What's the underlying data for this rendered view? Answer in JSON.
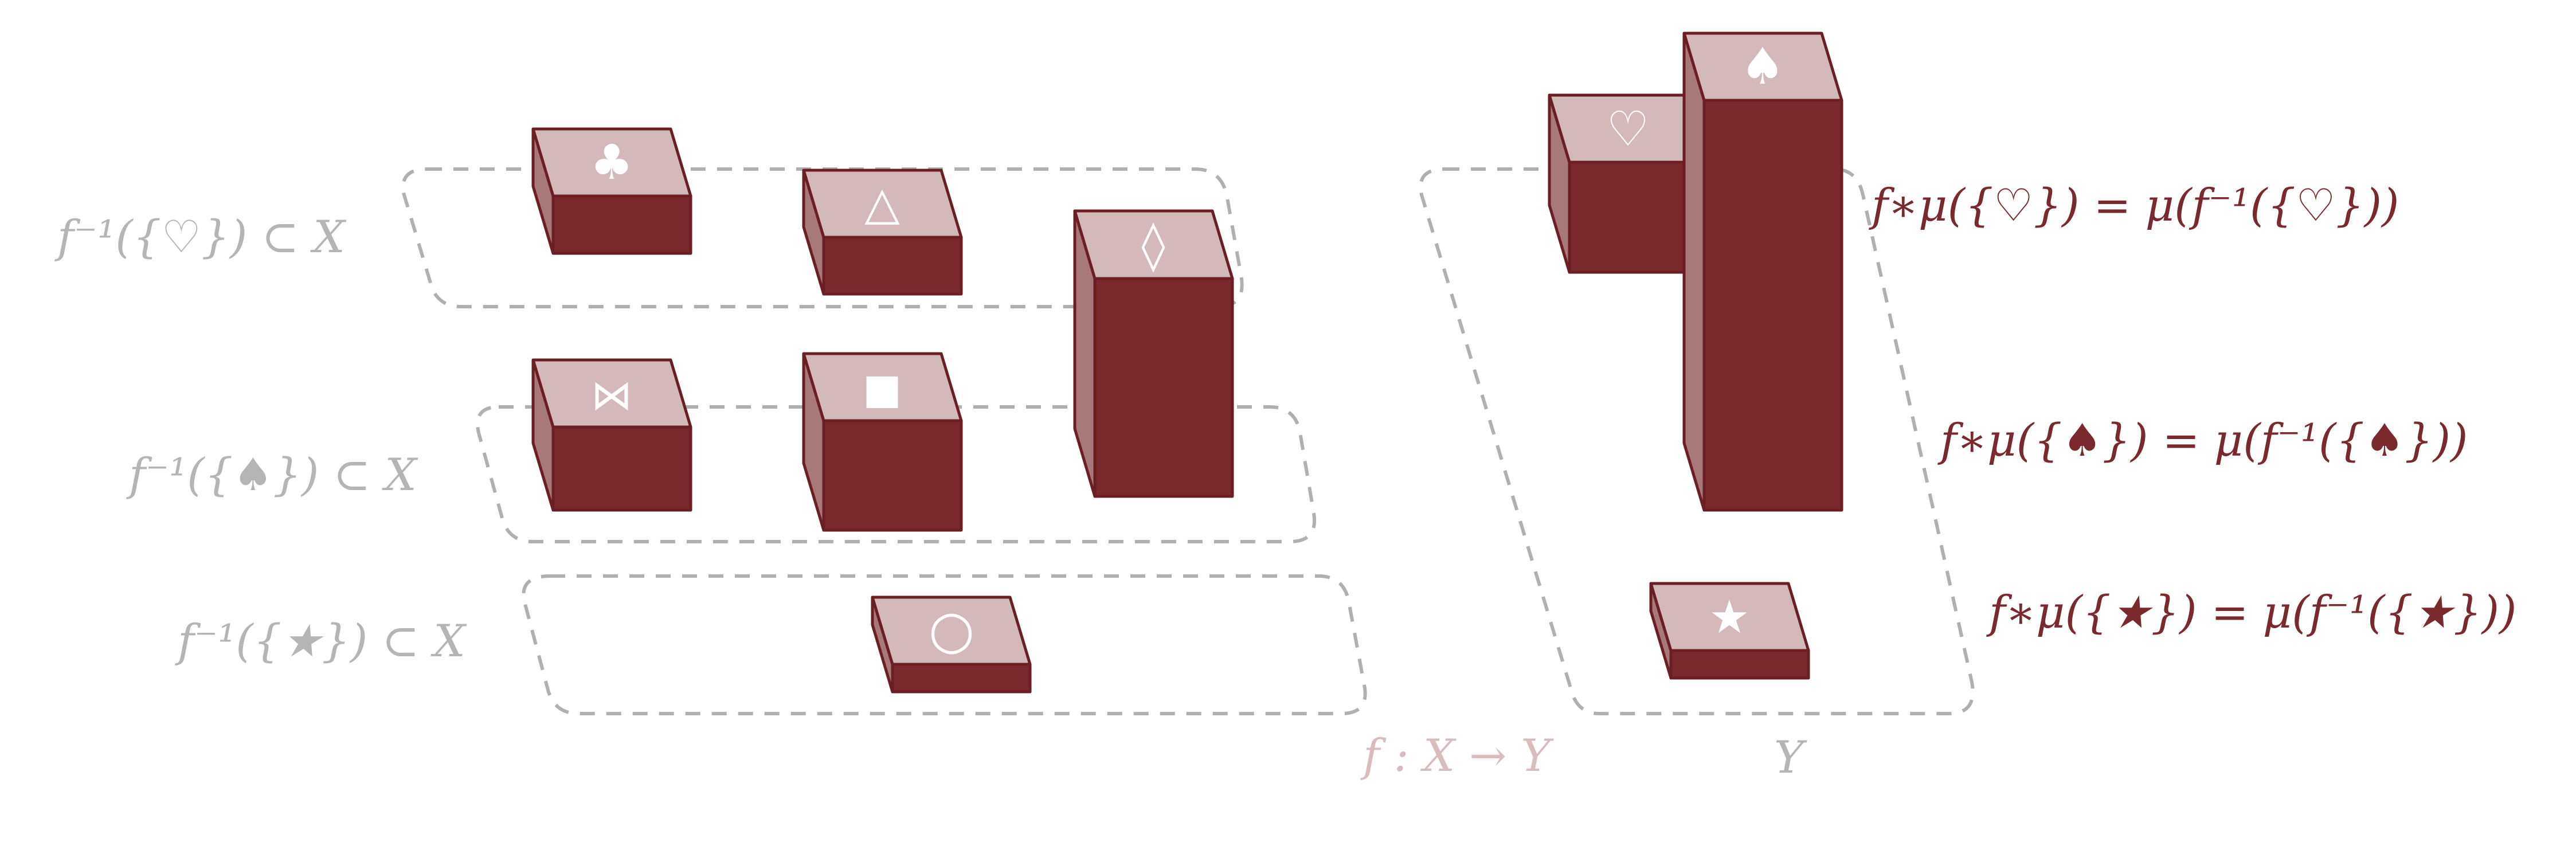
{
  "colors": {
    "bar_front": "#7a2a2e",
    "bar_side": "#a9787b",
    "bar_top": "#d4b9bb",
    "outline": "#6b1f24",
    "region_dash": "#b0b0b0",
    "gray_text": "#b5b5b5",
    "red_text": "#7a2a2e",
    "pink_text": "#d9bcbe"
  },
  "symbols": {
    "club": "♣",
    "triangle": "△",
    "diamond": "◊",
    "bowtie": "⋈",
    "square": "■",
    "circle": "○",
    "heart": "♡",
    "spade": "♠",
    "star": "★"
  },
  "left_labels": {
    "heart_preimage": "f⁻¹({♡}) ⊂ X",
    "spade_preimage": "f⁻¹({♠}) ⊂ X",
    "star_preimage": "f⁻¹({★}) ⊂ X"
  },
  "right_labels": {
    "heart_pushforward": "f∗μ({♡}) = μ(f⁻¹({♡}))",
    "spade_pushforward": "f∗μ({♠}) = μ(f⁻¹({♠}))",
    "star_pushforward": "f∗μ({★}) = μ(f⁻¹({★}))"
  },
  "map_label": "f : X → Y",
  "codomain_label": "Y"
}
